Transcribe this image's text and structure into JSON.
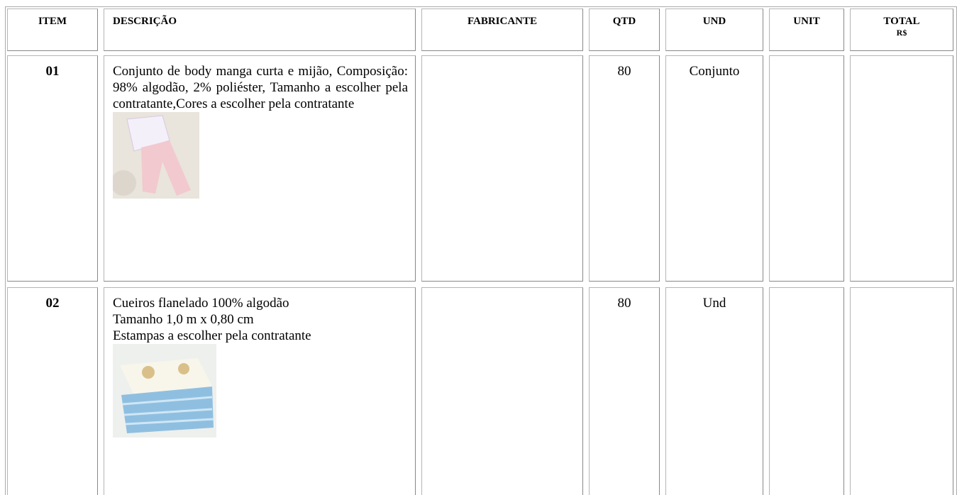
{
  "table": {
    "header": [
      "ITEM",
      "DESCRIÇÃO",
      "FABRICANTE",
      "QTD",
      "UND",
      "UNIT",
      {
        "label": "TOTAL",
        "sub": "R$"
      }
    ],
    "rows": [
      {
        "item": "01",
        "description": [
          "Conjunto de body manga curta e mijão, Composição: 98% algodão, 2% poliéster, Tamanho a escolher pela contratante,Cores a escolher pela contratante"
        ],
        "qtd": "80",
        "und": "Conjunto"
      },
      {
        "item": "02",
        "description": [
          "Cueiros flanelado 100% algodão",
          "Tamanho 1,0 m x 0,80 cm",
          "Estampas a escolher pela contratante"
        ],
        "qtd": "80",
        "und": "Und"
      }
    ]
  }
}
